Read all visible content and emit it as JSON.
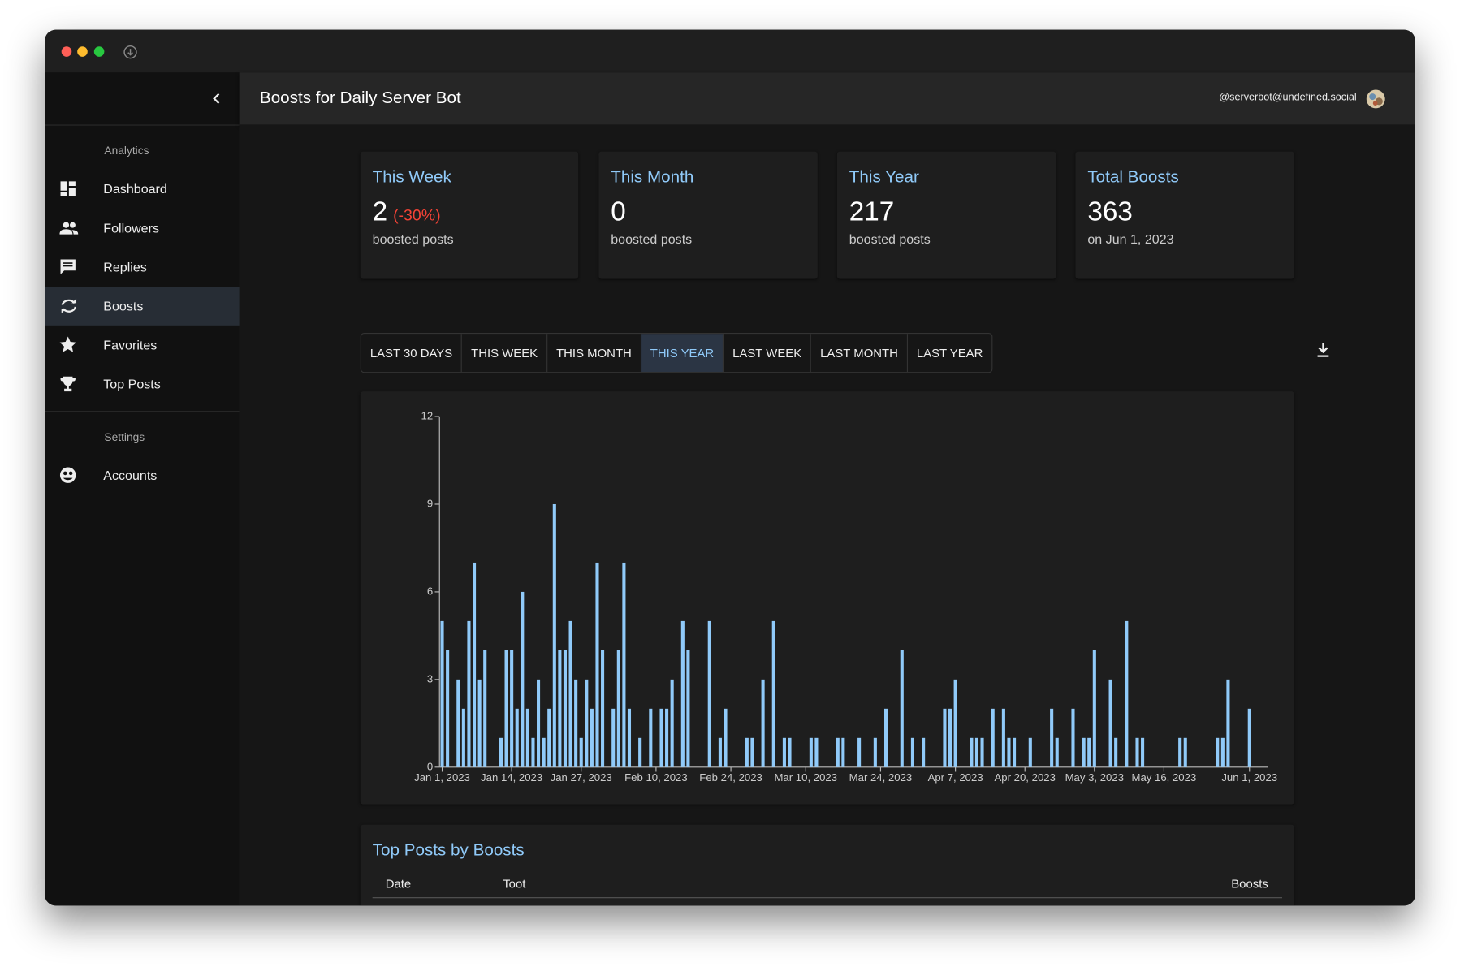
{
  "header": {
    "title": "Boosts for Daily Server Bot",
    "account": "@serverbot@undefined.social"
  },
  "sidebar": {
    "sections": [
      {
        "title": "Analytics",
        "items": [
          "Dashboard",
          "Followers",
          "Replies",
          "Boosts",
          "Favorites",
          "Top Posts"
        ]
      },
      {
        "title": "Settings",
        "items": [
          "Accounts"
        ]
      }
    ],
    "active": "Boosts"
  },
  "cards": [
    {
      "title": "This Week",
      "value": 2,
      "change": "(-30%)",
      "caption": "boosted posts"
    },
    {
      "title": "This Month",
      "value": 0,
      "caption": "boosted posts"
    },
    {
      "title": "This Year",
      "value": 217,
      "caption": "boosted posts"
    },
    {
      "title": "Total Boosts",
      "value": 363,
      "caption": "on Jun 1, 2023"
    }
  ],
  "tabs": {
    "items": [
      "LAST 30 DAYS",
      "THIS WEEK",
      "THIS MONTH",
      "THIS YEAR",
      "LAST WEEK",
      "LAST MONTH",
      "LAST YEAR"
    ],
    "active": "THIS YEAR"
  },
  "chart_data": {
    "type": "bar",
    "color": "#90caf9",
    "ylim": [
      0,
      12
    ],
    "yticks": [
      0,
      3,
      6,
      9,
      12
    ],
    "categories": [
      "Jan 1, 2023",
      null,
      null,
      null,
      null,
      null,
      null,
      null,
      null,
      null,
      null,
      null,
      null,
      "Jan 14, 2023",
      null,
      null,
      null,
      null,
      null,
      null,
      null,
      null,
      null,
      null,
      null,
      null,
      "Jan 27, 2023",
      null,
      null,
      null,
      null,
      null,
      null,
      null,
      null,
      null,
      null,
      null,
      null,
      null,
      "Feb 10, 2023",
      null,
      null,
      null,
      null,
      null,
      null,
      null,
      null,
      null,
      null,
      null,
      null,
      null,
      "Feb 24, 2023",
      null,
      null,
      null,
      null,
      null,
      null,
      null,
      null,
      null,
      null,
      null,
      null,
      null,
      "Mar 10, 2023",
      null,
      null,
      null,
      null,
      null,
      null,
      null,
      null,
      null,
      null,
      null,
      null,
      null,
      "Mar 24, 2023",
      null,
      null,
      null,
      null,
      null,
      null,
      null,
      null,
      null,
      null,
      null,
      null,
      null,
      "Apr 7, 2023",
      null,
      null,
      null,
      null,
      null,
      null,
      null,
      null,
      null,
      null,
      null,
      null,
      "Apr 20, 2023",
      null,
      null,
      null,
      null,
      null,
      null,
      null,
      null,
      null,
      null,
      null,
      null,
      "May 3, 2023",
      null,
      null,
      null,
      null,
      null,
      null,
      null,
      null,
      null,
      null,
      null,
      null,
      "May 16, 2023",
      null,
      null,
      null,
      null,
      null,
      null,
      null,
      null,
      null,
      null,
      null,
      null,
      null,
      null,
      null,
      "Jun 1, 2023",
      null,
      null,
      null
    ],
    "values": [
      5,
      4,
      0,
      3,
      2,
      5,
      7,
      3,
      4,
      0,
      0,
      1,
      4,
      4,
      2,
      6,
      2,
      1,
      3,
      1,
      2,
      9,
      4,
      4,
      5,
      3,
      1,
      3,
      2,
      7,
      4,
      0,
      2,
      4,
      7,
      2,
      0,
      1,
      0,
      2,
      0,
      2,
      2,
      3,
      0,
      5,
      4,
      0,
      0,
      0,
      5,
      0,
      1,
      2,
      0,
      0,
      0,
      1,
      1,
      0,
      3,
      0,
      5,
      0,
      1,
      1,
      0,
      0,
      0,
      1,
      1,
      0,
      0,
      0,
      1,
      1,
      0,
      0,
      1,
      0,
      0,
      1,
      0,
      2,
      0,
      0,
      4,
      0,
      1,
      0,
      1,
      0,
      0,
      0,
      2,
      2,
      3,
      0,
      0,
      1,
      1,
      1,
      0,
      2,
      0,
      2,
      1,
      1,
      0,
      0,
      1,
      0,
      0,
      0,
      2,
      1,
      0,
      0,
      2,
      0,
      1,
      1,
      4,
      0,
      0,
      3,
      1,
      0,
      5,
      0,
      1,
      1,
      0,
      0,
      0,
      0,
      0,
      0,
      1,
      1,
      0,
      0,
      0,
      0,
      0,
      1,
      1,
      3,
      0,
      0,
      0,
      2,
      0,
      0,
      0
    ]
  },
  "table": {
    "title": "Top Posts by Boosts",
    "columns": [
      "Date",
      "Toot",
      "Boosts"
    ]
  }
}
